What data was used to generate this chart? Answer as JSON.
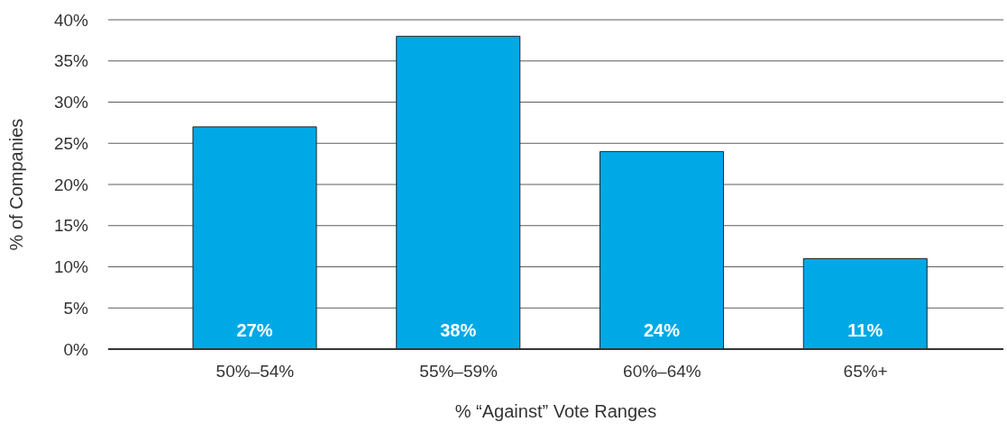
{
  "chart_data": {
    "type": "bar",
    "xlabel": "% “Against” Vote Ranges",
    "ylabel": "% of Companies",
    "categories": [
      "50%–54%",
      "55%–59%",
      "60%–64%",
      "65%+"
    ],
    "values": [
      27,
      38,
      24,
      11
    ],
    "color": "#00a9e6",
    "value_labels": [
      "27%",
      "38%",
      "24%",
      "11%"
    ],
    "ylim": [
      0,
      40
    ],
    "yticks": [
      {
        "value": 0,
        "label": "0%"
      },
      {
        "value": 5,
        "label": "5%"
      },
      {
        "value": 10,
        "label": "10%"
      },
      {
        "value": 15,
        "label": "15%"
      },
      {
        "value": 20,
        "label": "20%"
      },
      {
        "value": 25,
        "label": "25%"
      },
      {
        "value": 30,
        "label": "30%"
      },
      {
        "value": 35,
        "label": "35%"
      },
      {
        "value": 40,
        "label": "40%"
      }
    ],
    "grid": "y"
  }
}
